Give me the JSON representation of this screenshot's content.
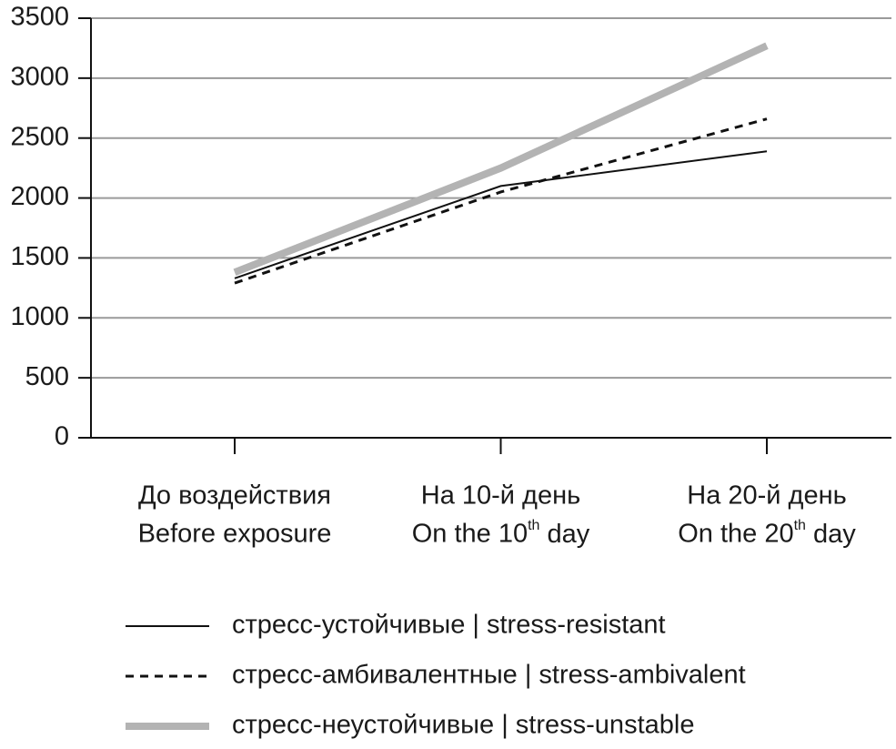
{
  "chart_data": {
    "type": "line",
    "categories": [
      [
        "До воздействия",
        "Before exposure"
      ],
      [
        "На 10-й день",
        "On the 10th day"
      ],
      [
        "На 20-й день",
        "On the 20th day"
      ]
    ],
    "series": [
      {
        "name": "стресс-устойчивые | stress-resistant",
        "color": "#111111",
        "style": "solid",
        "width": 2,
        "values": [
          1330,
          2100,
          2390
        ]
      },
      {
        "name": "стресс-амбивалентные | stress-ambivalent",
        "color": "#111111",
        "style": "dashed",
        "width": 3,
        "values": [
          1290,
          2050,
          2660
        ]
      },
      {
        "name": "стресс-неустойчивые | stress-unstable",
        "color": "#b3b3b3",
        "style": "solid",
        "width": 8,
        "values": [
          1380,
          2250,
          3270
        ]
      }
    ],
    "ylim": [
      0,
      3500
    ],
    "yticks": [
      0,
      500,
      1000,
      1500,
      2000,
      2500,
      3000,
      3500
    ],
    "grid": true
  }
}
